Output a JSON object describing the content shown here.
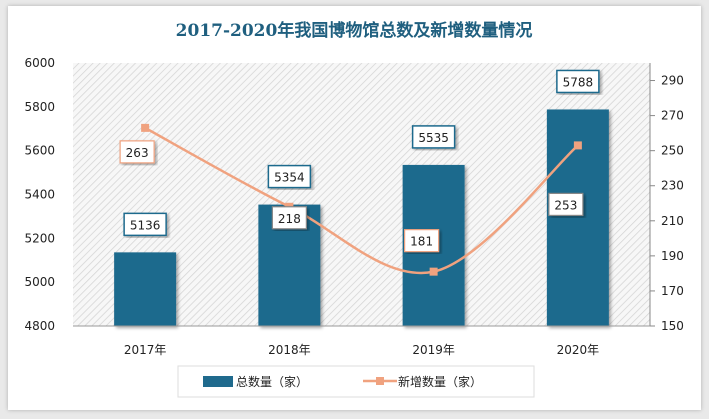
{
  "chart_data": {
    "type": "bar+line",
    "title": "2017-2020年我国博物馆总数及新增数量情况",
    "categories": [
      "2017年",
      "2018年",
      "2019年",
      "2020年"
    ],
    "series": [
      {
        "name": "总数量（家）",
        "type": "bar",
        "axis": "left",
        "values": [
          5136,
          5354,
          5535,
          5788
        ],
        "color": "#1f6a8d"
      },
      {
        "name": "新增数量（家）",
        "type": "line",
        "axis": "right",
        "values": [
          263,
          218,
          181,
          253
        ],
        "color": "#f0a27f",
        "smooth": true,
        "marker": "square"
      }
    ],
    "y_left": {
      "range": [
        4800,
        6000
      ],
      "ticks": [
        4800,
        5000,
        5200,
        5400,
        5600,
        5800,
        6000
      ]
    },
    "y_right": {
      "range": [
        150,
        300
      ],
      "ticks": [
        150,
        170,
        190,
        210,
        230,
        250,
        270,
        290
      ]
    },
    "legend": "bottom",
    "background": "hatched"
  }
}
